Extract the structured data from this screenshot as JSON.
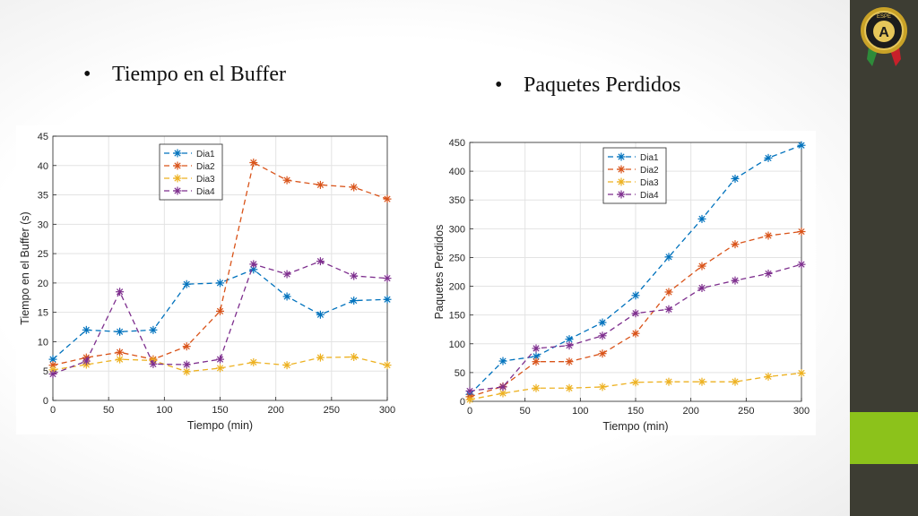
{
  "titles": {
    "left": "Tiempo en el Buffer",
    "right": "Paquetes Perdidos",
    "bullet": "•"
  },
  "logo": {
    "letter": "A",
    "text": "ESPE"
  },
  "colors": {
    "right_band": "#3d3d33",
    "accent_green": "#8cc21b",
    "dia1": "#0072bd",
    "dia2": "#d95319",
    "dia3": "#edb120",
    "dia4": "#7e2f8e"
  },
  "chart_data": [
    {
      "type": "line",
      "xlabel": "Tiempo (min)",
      "ylabel": "Tiempo en el Buffer (s)",
      "xlim": [
        0,
        300
      ],
      "ylim": [
        0,
        45
      ],
      "xticks": [
        0,
        50,
        100,
        150,
        200,
        250,
        300
      ],
      "yticks": [
        0,
        5,
        10,
        15,
        20,
        25,
        30,
        35,
        40,
        45
      ],
      "grid": true,
      "legend_position": "top-center",
      "marker": "asterisk",
      "line_style": "dashed",
      "series": [
        {
          "name": "Dia1",
          "color": "#0072bd",
          "x": [
            0,
            30,
            60,
            90,
            120,
            150,
            180,
            210,
            240,
            270,
            300
          ],
          "y": [
            7,
            12,
            11.7,
            12,
            19.8,
            20,
            22.3,
            17.7,
            14.6,
            17,
            17.2
          ]
        },
        {
          "name": "Dia2",
          "color": "#d95319",
          "x": [
            0,
            30,
            60,
            90,
            120,
            150,
            180,
            210,
            240,
            270,
            300
          ],
          "y": [
            6,
            7.3,
            8.2,
            7,
            9.2,
            15.2,
            40.5,
            37.5,
            36.7,
            36.3,
            34.3
          ]
        },
        {
          "name": "Dia3",
          "color": "#edb120",
          "x": [
            0,
            30,
            60,
            90,
            120,
            150,
            180,
            210,
            240,
            270,
            300
          ],
          "y": [
            5.2,
            6.1,
            7,
            6.8,
            4.9,
            5.5,
            6.5,
            6,
            7.3,
            7.4,
            6
          ]
        },
        {
          "name": "Dia4",
          "color": "#7e2f8e",
          "x": [
            0,
            30,
            60,
            90,
            120,
            150,
            180,
            210,
            240,
            270,
            300
          ],
          "y": [
            4.5,
            6.7,
            18.5,
            6.2,
            6.1,
            7,
            23.2,
            21.5,
            23.7,
            21.2,
            20.8
          ]
        }
      ]
    },
    {
      "type": "line",
      "xlabel": "Tiempo (min)",
      "ylabel": "Paquetes Perdidos",
      "xlim": [
        0,
        300
      ],
      "ylim": [
        0,
        450
      ],
      "xticks": [
        0,
        50,
        100,
        150,
        200,
        250,
        300
      ],
      "yticks": [
        0,
        50,
        100,
        150,
        200,
        250,
        300,
        350,
        400,
        450
      ],
      "grid": true,
      "legend_position": "top-right",
      "marker": "asterisk",
      "line_style": "dashed",
      "series": [
        {
          "name": "Dia1",
          "color": "#0072bd",
          "x": [
            0,
            30,
            60,
            90,
            120,
            150,
            180,
            210,
            240,
            270,
            300
          ],
          "y": [
            12,
            70,
            78,
            108,
            137,
            184,
            251,
            317,
            387,
            423,
            445
          ]
        },
        {
          "name": "Dia2",
          "color": "#d95319",
          "x": [
            0,
            30,
            60,
            90,
            120,
            150,
            180,
            210,
            240,
            270,
            300
          ],
          "y": [
            8,
            26,
            69,
            69,
            83,
            118,
            190,
            235,
            273,
            288,
            295
          ]
        },
        {
          "name": "Dia3",
          "color": "#edb120",
          "x": [
            0,
            30,
            60,
            90,
            120,
            150,
            180,
            210,
            240,
            270,
            300
          ],
          "y": [
            3,
            14,
            23,
            23,
            25,
            33,
            34,
            34,
            34,
            43,
            49
          ]
        },
        {
          "name": "Dia4",
          "color": "#7e2f8e",
          "x": [
            0,
            30,
            60,
            90,
            120,
            150,
            180,
            210,
            240,
            270,
            300
          ],
          "y": [
            18,
            25,
            92,
            97,
            114,
            153,
            160,
            197,
            210,
            222,
            238
          ]
        }
      ]
    }
  ]
}
